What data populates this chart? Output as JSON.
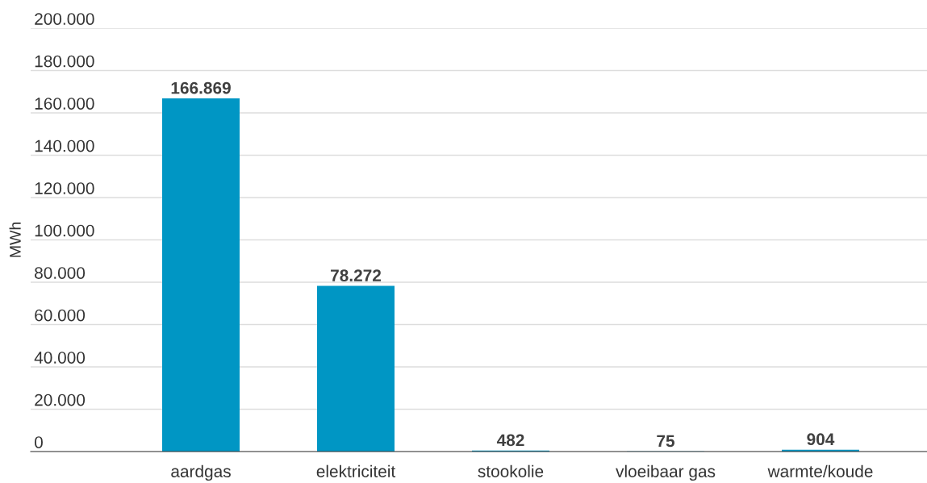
{
  "chart_data": {
    "type": "bar",
    "ylabel": "MWh",
    "categories": [
      "aardgas",
      "elektriciteit",
      "stookolie",
      "vloeibaar gas",
      "warmte/koude"
    ],
    "values": [
      166869,
      78272,
      482,
      75,
      904
    ],
    "value_labels": [
      "166.869",
      "78.272",
      "482",
      "75",
      "904"
    ],
    "color": "#0096c4",
    "ylim": [
      0,
      200000
    ],
    "yticks": [
      {
        "value": 0,
        "label": "0"
      },
      {
        "value": 20000,
        "label": "20.000"
      },
      {
        "value": 40000,
        "label": "40.000"
      },
      {
        "value": 60000,
        "label": "60.000"
      },
      {
        "value": 80000,
        "label": "80.000"
      },
      {
        "value": 100000,
        "label": "100.000"
      },
      {
        "value": 120000,
        "label": "120.000"
      },
      {
        "value": 140000,
        "label": "140.000"
      },
      {
        "value": 160000,
        "label": "160.000"
      },
      {
        "value": 180000,
        "label": "180.000"
      },
      {
        "value": 200000,
        "label": "200.000"
      }
    ],
    "grid": "y",
    "legend": false
  }
}
